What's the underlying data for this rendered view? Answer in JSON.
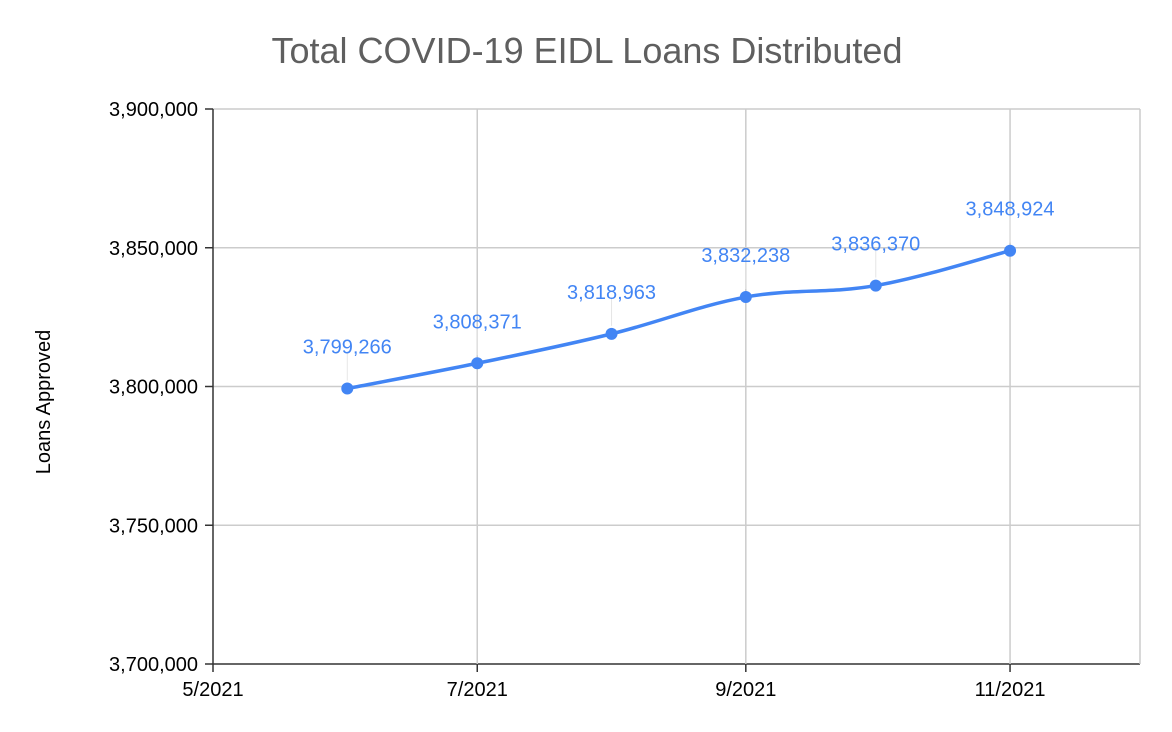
{
  "chart_data": {
    "type": "line",
    "title": "Total COVID-19 EIDL Loans Distributed",
    "xlabel": "",
    "ylabel": "Loans Approved",
    "x_ticks": [
      "5/2021",
      "7/2021",
      "9/2021",
      "11/2021"
    ],
    "y_ticks": [
      "3,700,000",
      "3,750,000",
      "3,800,000",
      "3,850,000",
      "3,900,000"
    ],
    "ylim": [
      3700000,
      3900000
    ],
    "xlim": [
      "2021-05-01",
      "2021-12-01"
    ],
    "grid": true,
    "series": [
      {
        "name": "",
        "x": [
          "2021-06-01",
          "2021-07-01",
          "2021-08-01",
          "2021-09-01",
          "2021-10-01",
          "2021-11-01"
        ],
        "values": [
          3799266,
          3808371,
          3818963,
          3832238,
          3836370,
          3848924
        ],
        "labels": [
          "3,799,266",
          "3,808,371",
          "3,818,963",
          "3,832,238",
          "3,836,370",
          "3,848,924"
        ]
      }
    ],
    "colors": {
      "series": "#4285f4",
      "grid": "#cccccc",
      "axis": "#333333",
      "title": "#5f5f5f"
    }
  }
}
